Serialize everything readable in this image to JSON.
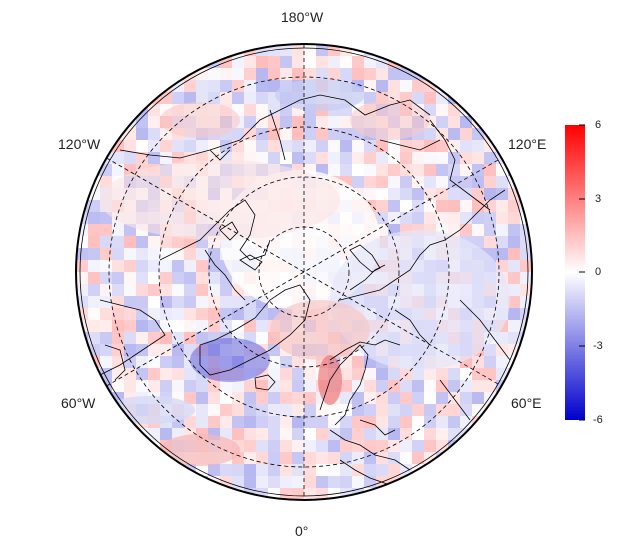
{
  "map": {
    "projection": "north-polar-stereographic",
    "graticule": "dashed",
    "longitude_labels": {
      "top": "180°W",
      "upper_left": "120°W",
      "upper_right": "120°E",
      "lower_left": "60°W",
      "lower_right": "60°E",
      "bottom": "0°"
    }
  },
  "colorbar": {
    "min": -6,
    "max": 6,
    "ticks": [
      "6",
      "3",
      "0",
      "-3",
      "-6"
    ],
    "colors": {
      "low": "#0000cc",
      "mid": "#ffffff",
      "high": "#ff0000"
    }
  }
}
